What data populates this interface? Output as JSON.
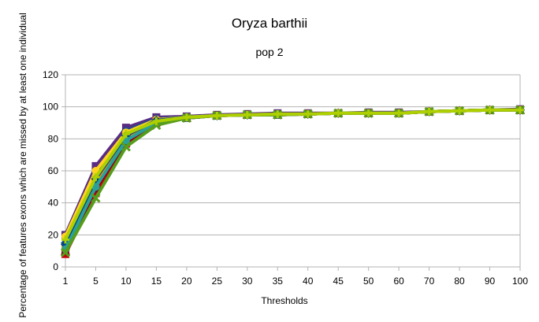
{
  "chart_data": {
    "type": "line",
    "title": "Oryza barthii",
    "subtitle": "pop 2",
    "xlabel": "Thresholds",
    "ylabel": "Percentage of features exons which are missed by at least one individual",
    "ylim": [
      0,
      120
    ],
    "y_ticks": [
      "0",
      "20",
      "40",
      "60",
      "80",
      "100",
      "120"
    ],
    "categories": [
      "1",
      "5",
      "10",
      "15",
      "20",
      "25",
      "30",
      "35",
      "40",
      "45",
      "50",
      "60",
      "70",
      "80",
      "90",
      "100"
    ],
    "grid": "horizontal",
    "legend": "none",
    "series": [
      {
        "color": "#5b2c83",
        "marker": "square",
        "values": [
          20,
          63,
          87,
          93.5,
          94,
          95,
          95.5,
          96,
          96,
          96,
          96.5,
          96.5,
          97,
          97.5,
          98,
          98.5
        ]
      },
      {
        "color": "#1f4e8c",
        "marker": "diamond",
        "values": [
          15,
          58,
          85,
          92.5,
          93.5,
          94.5,
          95,
          95.5,
          95.5,
          96,
          96,
          96,
          97,
          97.5,
          98,
          98
        ]
      },
      {
        "color": "#ffd320",
        "marker": "circle",
        "values": [
          19,
          60,
          84,
          92,
          93.5,
          94.5,
          95,
          95.5,
          95.5,
          96,
          96,
          96,
          97,
          97.5,
          98,
          98
        ]
      },
      {
        "color": "#ff950e",
        "marker": "square",
        "values": [
          12,
          52,
          80,
          91,
          93,
          94.5,
          95,
          95,
          95.5,
          96,
          96,
          96,
          97,
          97.5,
          98,
          98
        ]
      },
      {
        "color": "#c5000b",
        "marker": "square",
        "values": [
          8,
          46,
          77,
          90,
          93,
          94.5,
          95,
          95,
          95.5,
          96,
          96,
          96,
          97,
          97.5,
          98,
          98
        ]
      },
      {
        "color": "#004586",
        "marker": "diamond",
        "values": [
          14,
          55,
          82,
          91.5,
          93.5,
          94.5,
          95,
          95.5,
          95.5,
          96,
          96,
          96,
          97,
          97.5,
          98,
          98
        ]
      },
      {
        "color": "#7e0021",
        "marker": "triangle",
        "values": [
          10,
          49,
          78,
          90.5,
          93,
          94.5,
          95,
          95,
          95.5,
          96,
          96,
          96,
          97,
          97.5,
          98,
          98
        ]
      },
      {
        "color": "#2aa198",
        "marker": "circle",
        "values": [
          11,
          50,
          79,
          90,
          93,
          94.5,
          95,
          95,
          95.5,
          96,
          96,
          96,
          97,
          97.5,
          98,
          98
        ]
      },
      {
        "color": "#579d1c",
        "marker": "cross",
        "values": [
          9,
          43,
          75,
          88.5,
          93,
          94.5,
          95,
          95,
          95.5,
          96,
          96,
          96,
          97,
          97.5,
          98,
          98
        ]
      },
      {
        "color": "#aecf00",
        "marker": "plus",
        "values": [
          17,
          56,
          83,
          91,
          93.5,
          94.5,
          95,
          95.5,
          95.5,
          96,
          96,
          96,
          97,
          97.5,
          98,
          98
        ]
      }
    ]
  }
}
